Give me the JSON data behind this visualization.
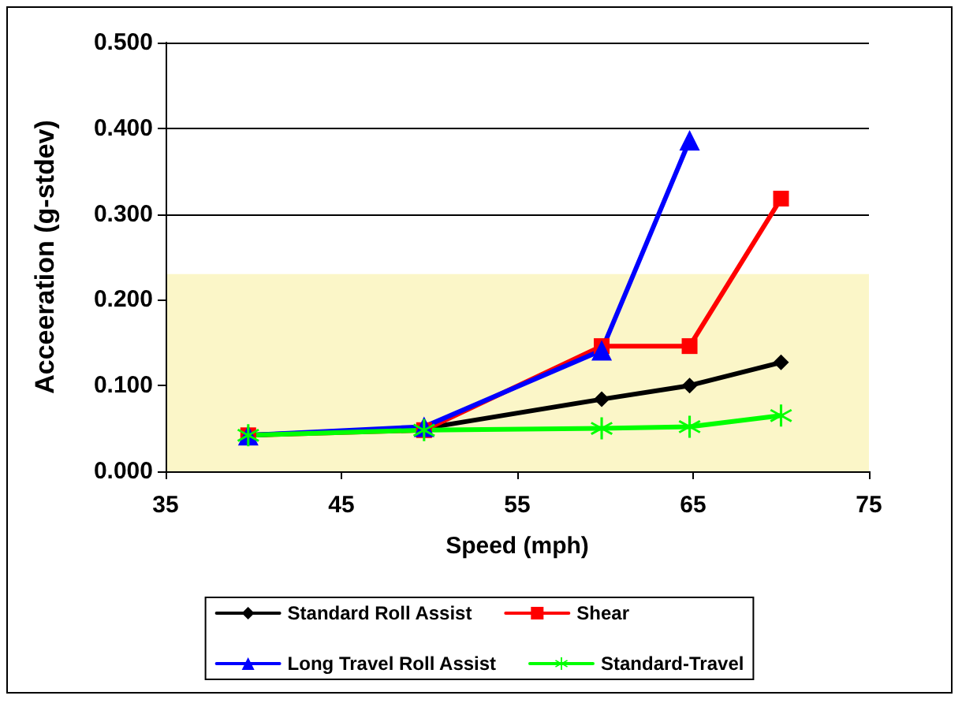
{
  "chart_data": {
    "type": "line",
    "xlabel": "Speed (mph)",
    "ylabel": "Acceeration (g-stdev)",
    "xlim": [
      35,
      75
    ],
    "xticks": [
      35,
      45,
      55,
      65,
      75
    ],
    "ylim": [
      0,
      0.5
    ],
    "yticks": [
      {
        "value": 0,
        "label": "0.000"
      },
      {
        "value": 0.1,
        "label": "0.100"
      },
      {
        "value": 0.2,
        "label": "0.200"
      },
      {
        "value": 0.3,
        "label": "0.300"
      },
      {
        "value": 0.4,
        "label": "0.400"
      },
      {
        "value": 0.5,
        "label": "0.500"
      }
    ],
    "grid": "y",
    "legend": "bottom",
    "line_style": "solid",
    "bands": [
      {
        "axis": "y",
        "from": 0,
        "to": 0.23,
        "color": "#fbf6c8"
      }
    ],
    "series": [
      {
        "name": "Standard Roll Assist",
        "color": "#000000",
        "marker": "diamond",
        "x": [
          39.7,
          49.7,
          59.8,
          64.8,
          70
        ],
        "values": [
          0.042,
          0.05,
          0.084,
          0.1,
          0.127
        ]
      },
      {
        "name": "Shear",
        "color": "#ff0000",
        "marker": "square",
        "x": [
          39.7,
          49.7,
          59.8,
          64.8,
          70
        ],
        "values": [
          0.042,
          0.048,
          0.146,
          0.146,
          0.318
        ]
      },
      {
        "name": "Long Travel Roll Assist",
        "color": "#0000ff",
        "marker": "triangle",
        "x": [
          39.7,
          49.7,
          59.8,
          64.8
        ],
        "values": [
          0.042,
          0.052,
          0.141,
          0.386
        ]
      },
      {
        "name": "Standard-Travel",
        "color": "#00ff00",
        "marker": "cross",
        "x": [
          39.7,
          49.7,
          59.8,
          64.8,
          70
        ],
        "values": [
          0.042,
          0.048,
          0.05,
          0.052,
          0.065
        ]
      }
    ]
  }
}
